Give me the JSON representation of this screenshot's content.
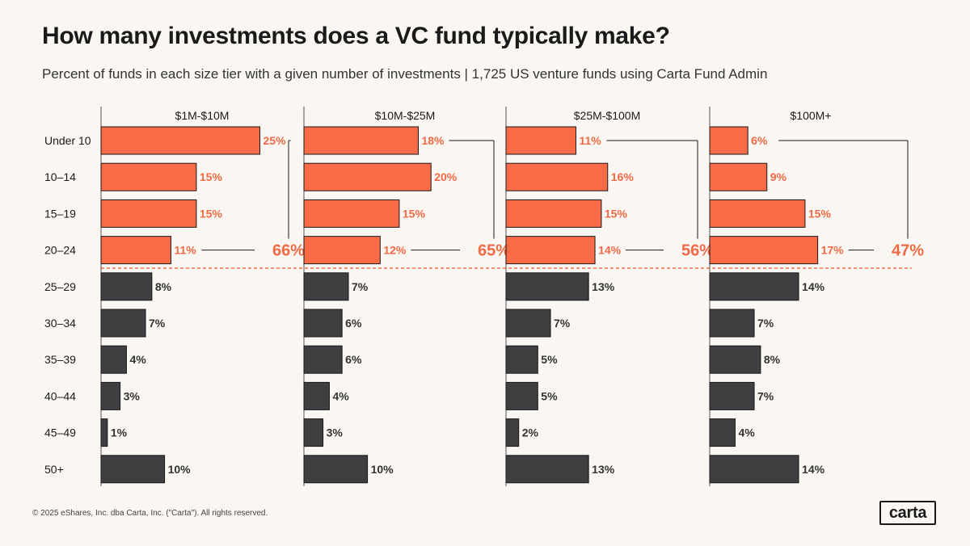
{
  "page": {
    "title": "How many investments does a VC fund typically make?",
    "subtitle": "Percent of funds in each size tier with a given number of investments | 1,725 US venture funds using Carta Fund Admin",
    "footer": "© 2025 eShares, Inc. dba Carta, Inc. (\"Carta\"). All rights reserved.",
    "logo": "carta"
  },
  "colors": {
    "highlight": "#f96b46",
    "dark": "#3f3f41",
    "highlight_text": "#f06a45",
    "dark_text": "#333333",
    "axis": "#555555"
  },
  "chart_data": {
    "type": "bar",
    "orientation": "horizontal",
    "title": "How many investments does a VC fund typically make?",
    "subtitle": "Percent of funds in each size tier with a given number of investments | 1,725 US venture funds using Carta Fund Admin",
    "categories": [
      "Under 10",
      "10–14",
      "15–19",
      "20–24",
      "25–29",
      "30–34",
      "35–39",
      "40–44",
      "45–49",
      "50+"
    ],
    "highlight_count": 4,
    "xlim": [
      0,
      30
    ],
    "series": [
      {
        "name": "$1M-$10M",
        "values": [
          25,
          15,
          15,
          11,
          8,
          7,
          4,
          3,
          1,
          10
        ],
        "labels": [
          "25%",
          "15%",
          "15%",
          "11%",
          "8%",
          "7%",
          "4%",
          "3%",
          "1%",
          "10%"
        ],
        "bracket_total": "66%"
      },
      {
        "name": "$10M-$25M",
        "values": [
          18,
          20,
          15,
          12,
          7,
          6,
          6,
          4,
          3,
          10
        ],
        "labels": [
          "18%",
          "20%",
          "15%",
          "12%",
          "7%",
          "6%",
          "6%",
          "4%",
          "3%",
          "10%"
        ],
        "bracket_total": "65%"
      },
      {
        "name": "$25M-$100M",
        "values": [
          11,
          16,
          15,
          14,
          13,
          7,
          5,
          5,
          2,
          13
        ],
        "labels": [
          "11%",
          "16%",
          "15%",
          "14%",
          "13%",
          "7%",
          "5%",
          "5%",
          "2%",
          "13%"
        ],
        "bracket_total": "56%"
      },
      {
        "name": "$100M+",
        "values": [
          6,
          9,
          15,
          17,
          14,
          7,
          8,
          7,
          4,
          14
        ],
        "labels": [
          "6%",
          "9%",
          "15%",
          "17%",
          "14%",
          "7%",
          "8%",
          "7%",
          "4%",
          "14%"
        ],
        "bracket_total": "47%"
      }
    ]
  }
}
